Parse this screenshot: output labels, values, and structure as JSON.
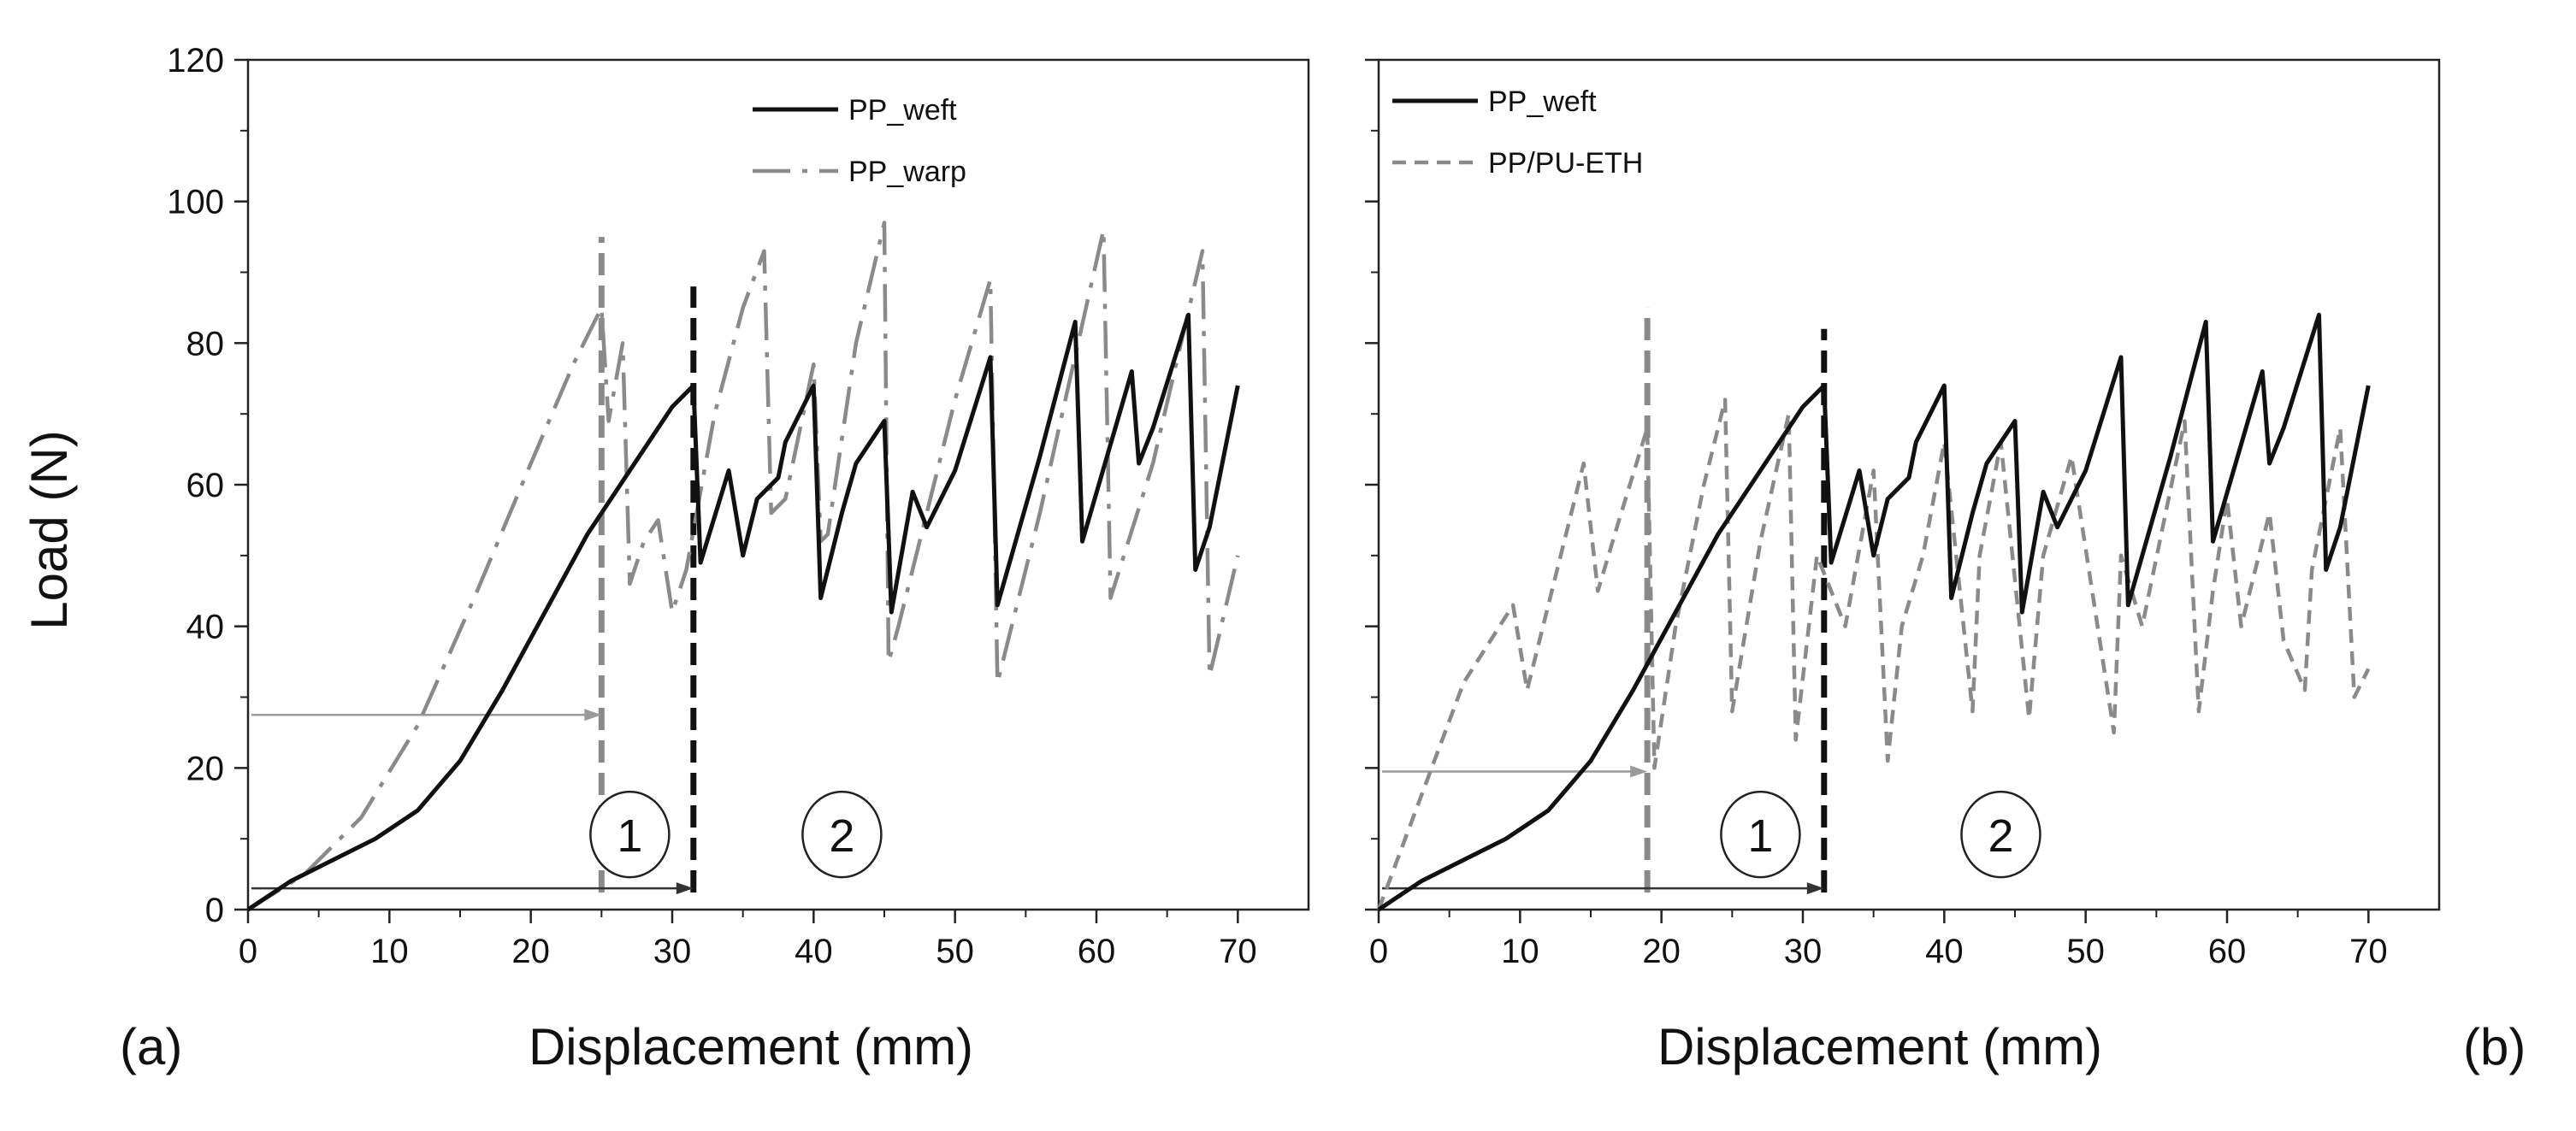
{
  "figure": {
    "ylabel": "Load (N)"
  },
  "chart_data": [
    {
      "type": "line",
      "panel_label": "(a)",
      "xlabel": "Displacement (mm)",
      "ylabel": "Load (N)",
      "xlim": [
        0,
        75
      ],
      "ylim": [
        0,
        120
      ],
      "xticks": [
        0,
        10,
        20,
        30,
        40,
        50,
        60,
        70
      ],
      "yticks": [
        0,
        20,
        40,
        60,
        80,
        100,
        120
      ],
      "legend_position": "top-right",
      "series": [
        {
          "name": "PP_weft",
          "style": "solid",
          "color": "#111111",
          "x": [
            0,
            3,
            6,
            9,
            12,
            15,
            18,
            21,
            24,
            27,
            30,
            31.5,
            32,
            34,
            35,
            36,
            37.5,
            38,
            39,
            40,
            40.5,
            42,
            43,
            45,
            45.5,
            47,
            48,
            50,
            52.5,
            53,
            56,
            58.5,
            59,
            62.5,
            63,
            64,
            66.5,
            67,
            68,
            70
          ],
          "y": [
            0,
            4,
            7,
            10,
            14,
            21,
            31,
            42,
            53,
            62,
            71,
            74,
            49,
            62,
            50,
            58,
            61,
            66,
            70,
            74,
            44,
            56,
            63,
            69,
            42,
            59,
            54,
            62,
            78,
            43,
            64,
            83,
            52,
            76,
            63,
            68,
            84,
            48,
            54,
            74
          ]
        },
        {
          "name": "PP_warp",
          "style": "dash-dot",
          "color": "#8a8a8a",
          "x": [
            0,
            4,
            8,
            12,
            16,
            20,
            23,
            25,
            25.5,
            26.5,
            27,
            28,
            29,
            30,
            31,
            33,
            35,
            36.5,
            37,
            38,
            40,
            40.5,
            41,
            43,
            45,
            45.3,
            46,
            50,
            52.5,
            53,
            56,
            60.5,
            61,
            64,
            67.5,
            68,
            70
          ],
          "y": [
            0,
            5,
            13,
            26,
            44,
            63,
            77,
            85,
            69,
            80,
            46,
            52,
            55,
            42,
            48,
            70,
            85,
            93,
            56,
            58,
            77,
            52,
            53,
            80,
            97,
            35,
            40,
            72,
            89,
            32,
            56,
            96,
            44,
            63,
            93,
            33,
            50
          ]
        }
      ],
      "annotations": [
        {
          "type": "vline",
          "x": 25,
          "y_top": 95,
          "color": "#8a8a8a",
          "style": "dashed"
        },
        {
          "type": "vline",
          "x": 31.5,
          "y_top": 88,
          "color": "#111111",
          "style": "dashed"
        },
        {
          "type": "arrow",
          "from": [
            0,
            27.5
          ],
          "to": [
            25,
            27.5
          ],
          "color": "#9a9a9a"
        },
        {
          "type": "arrow",
          "from": [
            0,
            3
          ],
          "to": [
            31.5,
            3
          ],
          "color": "#333333"
        },
        {
          "type": "circled_label",
          "text": "1",
          "x": 27,
          "y": 10
        },
        {
          "type": "circled_label",
          "text": "2",
          "x": 42,
          "y": 10
        }
      ]
    },
    {
      "type": "line",
      "panel_label": "(b)",
      "xlabel": "Displacement (mm)",
      "ylabel": "Load (N)",
      "xlim": [
        0,
        75
      ],
      "ylim": [
        0,
        120
      ],
      "xticks": [
        0,
        10,
        20,
        30,
        40,
        50,
        60,
        70
      ],
      "yticks": [
        0,
        20,
        40,
        60,
        80,
        100,
        120
      ],
      "legend_position": "top-left",
      "series": [
        {
          "name": "PP_weft",
          "style": "solid",
          "color": "#111111",
          "x": [
            0,
            3,
            6,
            9,
            12,
            15,
            18,
            21,
            24,
            27,
            30,
            31.5,
            32,
            34,
            35,
            36,
            37.5,
            38,
            39,
            40,
            40.5,
            42,
            43,
            45,
            45.5,
            47,
            48,
            50,
            52.5,
            53,
            56,
            58.5,
            59,
            62.5,
            63,
            64,
            66.5,
            67,
            68,
            70
          ],
          "y": [
            0,
            4,
            7,
            10,
            14,
            21,
            31,
            42,
            53,
            62,
            71,
            74,
            49,
            62,
            50,
            58,
            61,
            66,
            70,
            74,
            44,
            56,
            63,
            69,
            42,
            59,
            54,
            62,
            78,
            43,
            64,
            83,
            52,
            76,
            63,
            68,
            84,
            48,
            54,
            74
          ]
        },
        {
          "name": "PP/PU-ETH",
          "style": "dashed",
          "color": "#8a8a8a",
          "x": [
            0,
            3,
            6,
            9.5,
            10.5,
            14.5,
            15.5,
            17,
            19,
            19.5,
            21,
            23,
            24.5,
            25,
            27,
            29,
            29.5,
            31,
            33,
            35,
            36,
            37,
            38.5,
            40,
            42,
            42.5,
            44,
            46,
            47,
            49,
            52,
            52.5,
            54,
            57,
            58,
            59,
            60,
            61,
            63,
            64,
            65.5,
            66,
            68,
            69,
            70
          ],
          "y": [
            0,
            16,
            32,
            43,
            31,
            63,
            45,
            55,
            68,
            20,
            40,
            60,
            72,
            28,
            52,
            70,
            24,
            50,
            40,
            62,
            21,
            40,
            50,
            66,
            28,
            50,
            66,
            27,
            50,
            64,
            25,
            50,
            40,
            69,
            28,
            45,
            58,
            40,
            56,
            38,
            31,
            48,
            68,
            30,
            34
          ]
        }
      ],
      "annotations": [
        {
          "type": "vline",
          "x": 19,
          "y_top": 85,
          "color": "#8a8a8a",
          "style": "dashed"
        },
        {
          "type": "vline",
          "x": 31.5,
          "y_top": 82,
          "color": "#111111",
          "style": "dashed"
        },
        {
          "type": "arrow",
          "from": [
            0,
            19.5
          ],
          "to": [
            19,
            19.5
          ],
          "color": "#9a9a9a"
        },
        {
          "type": "arrow",
          "from": [
            0,
            3
          ],
          "to": [
            31.5,
            3
          ],
          "color": "#333333"
        },
        {
          "type": "circled_label",
          "text": "1",
          "x": 27,
          "y": 10
        },
        {
          "type": "circled_label",
          "text": "2",
          "x": 44,
          "y": 10
        }
      ]
    }
  ]
}
